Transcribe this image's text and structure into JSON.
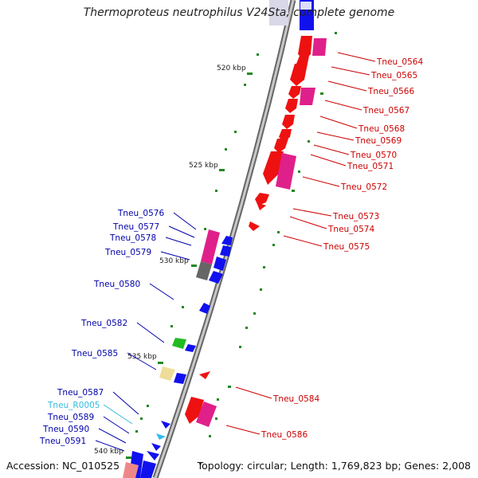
{
  "title": "Thermoproteus neutrophilus V24Sta, complete genome",
  "footer": {
    "accession": "Accession: NC_010525",
    "topology": "Topology: circular; Length: 1,769,823 bp; Genes: 2,008"
  },
  "ticks": [
    {
      "label": "520 kbp",
      "kbp": 520
    },
    {
      "label": "525 kbp",
      "kbp": 525
    },
    {
      "label": "530 kbp",
      "kbp": 530
    },
    {
      "label": "535 kbp",
      "kbp": 535
    },
    {
      "label": "540 kbp",
      "kbp": 540
    }
  ],
  "colors": {
    "forward_label": "#cc0000",
    "reverse_label": "#0000aa",
    "rna_label": "#33bbdd",
    "forward_gene": "#ee1111",
    "reverse_gene": "#1111ee",
    "backbone": "#888888"
  },
  "forward_genes": [
    {
      "label": "Tneu_0564"
    },
    {
      "label": "Tneu_0565"
    },
    {
      "label": "Tneu_0566"
    },
    {
      "label": "Tneu_0567"
    },
    {
      "label": "Tneu_0568"
    },
    {
      "label": "Tneu_0569"
    },
    {
      "label": "Tneu_0570"
    },
    {
      "label": "Tneu_0571"
    },
    {
      "label": "Tneu_0572"
    },
    {
      "label": "Tneu_0573"
    },
    {
      "label": "Tneu_0574"
    },
    {
      "label": "Tneu_0575"
    },
    {
      "label": "Tneu_0584"
    },
    {
      "label": "Tneu_0586"
    }
  ],
  "reverse_genes": [
    {
      "label": "Tneu_0576"
    },
    {
      "label": "Tneu_0577"
    },
    {
      "label": "Tneu_0578"
    },
    {
      "label": "Tneu_0579"
    },
    {
      "label": "Tneu_0580"
    },
    {
      "label": "Tneu_0582"
    },
    {
      "label": "Tneu_0585"
    },
    {
      "label": "Tneu_0587"
    },
    {
      "label": "Tneu_R0005"
    },
    {
      "label": "Tneu_0589"
    },
    {
      "label": "Tneu_0590"
    },
    {
      "label": "Tneu_0591"
    }
  ]
}
